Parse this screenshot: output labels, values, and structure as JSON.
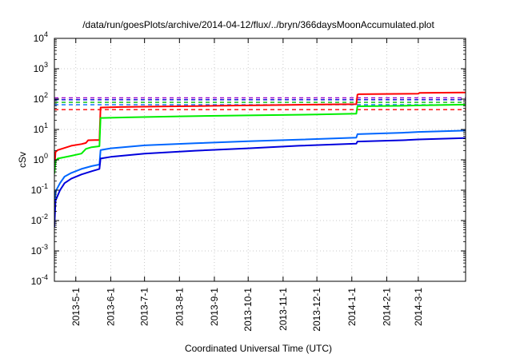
{
  "chart_data": {
    "type": "line",
    "title": "/data/run/goesPlots/archive/2014-04-12/flux/../bryn/366daysMoonAccumulated.plot",
    "xlabel": "Coordinated Universal Time (UTC)",
    "ylabel": "cSv",
    "y_scale": "log",
    "ylim": [
      0.0001,
      10000
    ],
    "xlim": [
      "2013-04-12",
      "2014-04-12"
    ],
    "grid": true,
    "x_ticks": [
      {
        "date": "2013-05-01",
        "label": "2013-5-1"
      },
      {
        "date": "2013-06-01",
        "label": "2013-6-1"
      },
      {
        "date": "2013-07-01",
        "label": "2013-7-1"
      },
      {
        "date": "2013-08-01",
        "label": "2013-8-1"
      },
      {
        "date": "2013-09-01",
        "label": "2013-9-1"
      },
      {
        "date": "2013-10-01",
        "label": "2013-10-1"
      },
      {
        "date": "2013-11-01",
        "label": "2013-11-1"
      },
      {
        "date": "2013-12-01",
        "label": "2013-12-1"
      },
      {
        "date": "2014-01-01",
        "label": "2014-1-1"
      },
      {
        "date": "2014-02-01",
        "label": "2014-2-1"
      },
      {
        "date": "2014-03-01",
        "label": "2014-3-1"
      }
    ],
    "y_ticks": [
      {
        "value": 0.0001,
        "mantissa": "10",
        "exp": "-4"
      },
      {
        "value": 0.001,
        "mantissa": "10",
        "exp": "-3"
      },
      {
        "value": 0.01,
        "mantissa": "10",
        "exp": "-2"
      },
      {
        "value": 0.1,
        "mantissa": "10",
        "exp": "-1"
      },
      {
        "value": 1,
        "mantissa": "10",
        "exp": "0"
      },
      {
        "value": 10,
        "mantissa": "10",
        "exp": "1"
      },
      {
        "value": 100,
        "mantissa": "10",
        "exp": "2"
      },
      {
        "value": 1000,
        "mantissa": "10",
        "exp": "3"
      },
      {
        "value": 10000,
        "mantissa": "10",
        "exp": "4"
      }
    ],
    "series": [
      {
        "color": "#ff0000",
        "points": [
          [
            "2013-04-12",
            0.5
          ],
          [
            "2013-04-13",
            1.8
          ],
          [
            "2013-04-15",
            2.1
          ],
          [
            "2013-04-20",
            2.4
          ],
          [
            "2013-04-27",
            2.9
          ],
          [
            "2013-05-06",
            3.3
          ],
          [
            "2013-05-10",
            3.6
          ],
          [
            "2013-05-12",
            4.4
          ],
          [
            "2013-05-18",
            4.5
          ],
          [
            "2013-05-22",
            4.5
          ],
          [
            "2013-05-23",
            53
          ],
          [
            "2013-06-10",
            55
          ],
          [
            "2013-07-15",
            57
          ],
          [
            "2013-09-01",
            60
          ],
          [
            "2013-11-01",
            64
          ],
          [
            "2013-12-15",
            67
          ],
          [
            "2014-01-05",
            68
          ],
          [
            "2014-01-06",
            140
          ],
          [
            "2014-01-07",
            145
          ],
          [
            "2014-03-01",
            150
          ],
          [
            "2014-03-02",
            160
          ],
          [
            "2014-04-12",
            165
          ]
        ]
      },
      {
        "color": "#00ee00",
        "points": [
          [
            "2013-04-12",
            0.35
          ],
          [
            "2013-04-13",
            0.9
          ],
          [
            "2013-04-15",
            1.1
          ],
          [
            "2013-04-20",
            1.2
          ],
          [
            "2013-04-27",
            1.35
          ],
          [
            "2013-05-06",
            1.6
          ],
          [
            "2013-05-10",
            2.3
          ],
          [
            "2013-05-15",
            2.6
          ],
          [
            "2013-05-22",
            2.8
          ],
          [
            "2013-05-23",
            24
          ],
          [
            "2013-06-15",
            25
          ],
          [
            "2013-08-01",
            27
          ],
          [
            "2013-10-01",
            29
          ],
          [
            "2013-12-01",
            31
          ],
          [
            "2014-01-05",
            33
          ],
          [
            "2014-01-06",
            58
          ],
          [
            "2014-02-15",
            60
          ],
          [
            "2014-03-01",
            62
          ],
          [
            "2014-04-12",
            66
          ]
        ]
      },
      {
        "color": "#0066ff",
        "points": [
          [
            "2013-04-12",
            0.03
          ],
          [
            "2013-04-13",
            0.09
          ],
          [
            "2013-04-17",
            0.17
          ],
          [
            "2013-04-21",
            0.28
          ],
          [
            "2013-04-27",
            0.37
          ],
          [
            "2013-05-06",
            0.5
          ],
          [
            "2013-05-15",
            0.62
          ],
          [
            "2013-05-22",
            0.7
          ],
          [
            "2013-05-23",
            2.1
          ],
          [
            "2013-06-01",
            2.4
          ],
          [
            "2013-07-01",
            3.0
          ],
          [
            "2013-08-15",
            3.5
          ],
          [
            "2013-10-01",
            4.1
          ],
          [
            "2013-11-15",
            4.6
          ],
          [
            "2014-01-05",
            5.4
          ],
          [
            "2014-01-06",
            7.0
          ],
          [
            "2014-02-15",
            7.8
          ],
          [
            "2014-03-01",
            8.3
          ],
          [
            "2014-04-12",
            9.2
          ]
        ]
      },
      {
        "color": "#0000dd",
        "points": [
          [
            "2013-04-12",
            0.006
          ],
          [
            "2013-04-13",
            0.045
          ],
          [
            "2013-04-17",
            0.1
          ],
          [
            "2013-04-21",
            0.17
          ],
          [
            "2013-04-27",
            0.24
          ],
          [
            "2013-05-06",
            0.33
          ],
          [
            "2013-05-15",
            0.42
          ],
          [
            "2013-05-22",
            0.5
          ],
          [
            "2013-05-23",
            1.1
          ],
          [
            "2013-06-01",
            1.25
          ],
          [
            "2013-07-01",
            1.6
          ],
          [
            "2013-08-15",
            2.0
          ],
          [
            "2013-10-01",
            2.4
          ],
          [
            "2013-11-15",
            2.9
          ],
          [
            "2014-01-05",
            3.4
          ],
          [
            "2014-01-06",
            4.0
          ],
          [
            "2014-02-15",
            4.4
          ],
          [
            "2014-03-01",
            4.7
          ],
          [
            "2014-04-12",
            5.2
          ]
        ]
      }
    ],
    "threshold_lines": [
      {
        "color": "#9900cc",
        "value": 110
      },
      {
        "color": "#0000dd",
        "value": 95
      },
      {
        "color": "#00bb00",
        "value": 78
      },
      {
        "color": "#0066ff",
        "value": 65
      },
      {
        "color": "#ff0000",
        "value": 45
      }
    ]
  }
}
